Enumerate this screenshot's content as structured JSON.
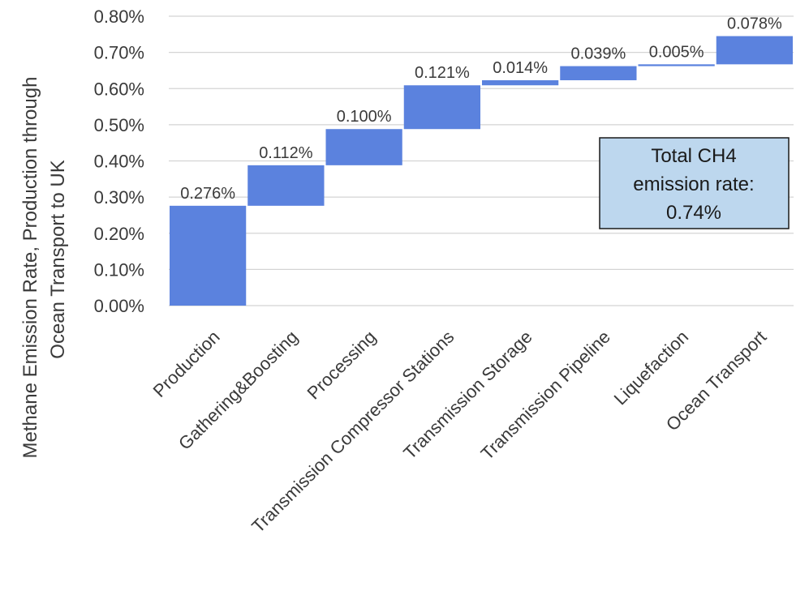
{
  "chart_data": {
    "type": "bar",
    "subtype": "waterfall",
    "categories": [
      "Production",
      "Gathering&Boosting",
      "Processing",
      "Transmission Compressor Stations",
      "Transmission Storage",
      "Transmission Pipeline",
      "Liquefaction",
      "Ocean Transport"
    ],
    "values": [
      0.276,
      0.112,
      0.1,
      0.121,
      0.014,
      0.039,
      0.005,
      0.078
    ],
    "data_labels": [
      "0.276%",
      "0.112%",
      "0.100%",
      "0.121%",
      "0.014%",
      "0.039%",
      "0.005%",
      "0.078%"
    ],
    "ylabel_lines": [
      "Methane Emission Rate, Production through",
      "Ocean Transport to UK"
    ],
    "ylim": [
      0,
      0.8
    ],
    "yticks": [
      0,
      0.1,
      0.2,
      0.3,
      0.4,
      0.5,
      0.6,
      0.7,
      0.8
    ],
    "ytick_labels": [
      "0.00%",
      "0.10%",
      "0.20%",
      "0.30%",
      "0.40%",
      "0.50%",
      "0.60%",
      "0.70%",
      "0.80%"
    ],
    "grid": true,
    "bar_color": "#5b82de",
    "annotation": {
      "lines": [
        "Total CH4",
        "emission rate:",
        "0.74%"
      ],
      "fill": "#bdd7ee",
      "border": "#1a1a1a"
    }
  }
}
